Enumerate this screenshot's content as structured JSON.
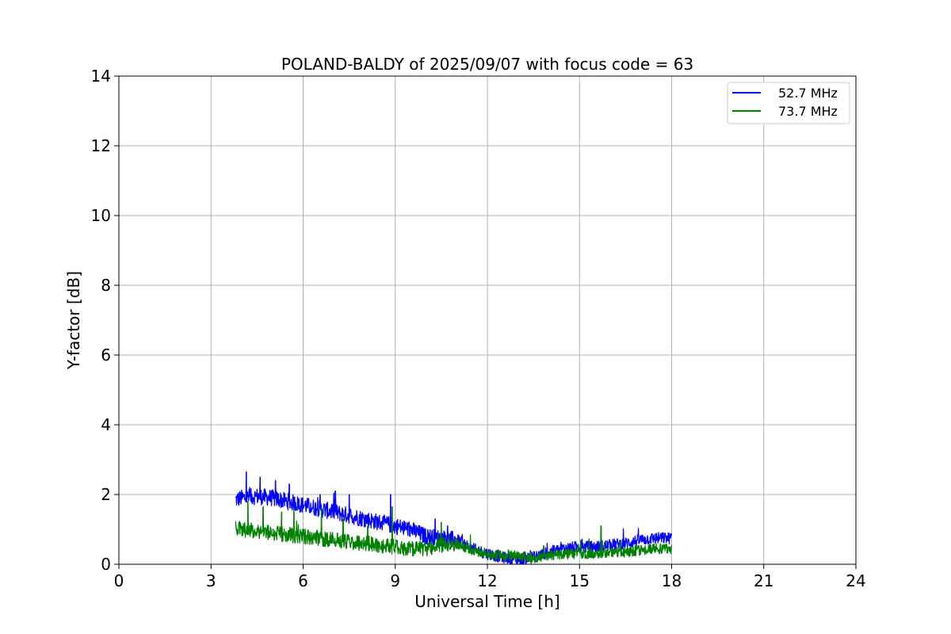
{
  "chart_data": {
    "type": "line",
    "title": "POLAND-BALDY of 2025/09/07 with focus code = 63",
    "xlabel": "Universal Time [h]",
    "ylabel": "Y-factor [dB]",
    "xlim": [
      0,
      24
    ],
    "ylim": [
      0,
      14
    ],
    "xticks": [
      "0",
      "3",
      "6",
      "9",
      "12",
      "15",
      "18",
      "21",
      "24"
    ],
    "yticks": [
      "0",
      "2",
      "4",
      "6",
      "8",
      "10",
      "12",
      "14"
    ],
    "grid": true,
    "legend_position": "upper right",
    "series": [
      {
        "name": "52.7 MHz",
        "color": "#0000ff",
        "x": [
          3.8,
          4.0,
          4.5,
          5.0,
          5.5,
          6.0,
          6.5,
          7.0,
          7.5,
          8.0,
          8.5,
          9.0,
          9.5,
          10.0,
          10.5,
          11.0,
          11.5,
          12.0,
          12.5,
          13.0,
          13.5,
          14.0,
          14.5,
          15.0,
          15.5,
          16.0,
          16.5,
          17.0,
          17.5,
          18.0
        ],
        "values": [
          1.85,
          1.9,
          1.95,
          1.9,
          1.8,
          1.7,
          1.6,
          1.5,
          1.4,
          1.3,
          1.2,
          1.1,
          1.0,
          0.8,
          0.75,
          0.7,
          0.45,
          0.3,
          0.2,
          0.15,
          0.2,
          0.35,
          0.45,
          0.5,
          0.5,
          0.55,
          0.6,
          0.7,
          0.75,
          0.75
        ],
        "spikes": [
          [
            4.15,
            2.65
          ],
          [
            4.6,
            2.5
          ],
          [
            5.1,
            2.4
          ],
          [
            5.55,
            2.3
          ],
          [
            6.55,
            2.0
          ],
          [
            7.05,
            2.1
          ],
          [
            7.5,
            2.0
          ],
          [
            8.85,
            2.0
          ],
          [
            10.3,
            1.3
          ],
          [
            10.7,
            1.1
          ]
        ]
      },
      {
        "name": "73.7 MHz",
        "color": "#008000",
        "x": [
          3.8,
          4.0,
          4.5,
          5.0,
          5.5,
          6.0,
          6.5,
          7.0,
          7.5,
          8.0,
          8.5,
          9.0,
          9.5,
          10.0,
          10.5,
          11.0,
          11.5,
          12.0,
          12.5,
          13.0,
          13.5,
          14.0,
          14.5,
          15.0,
          15.5,
          16.0,
          16.5,
          17.0,
          17.5,
          18.0
        ],
        "values": [
          1.05,
          1.0,
          0.95,
          0.9,
          0.85,
          0.8,
          0.75,
          0.7,
          0.65,
          0.6,
          0.55,
          0.5,
          0.45,
          0.45,
          0.55,
          0.6,
          0.4,
          0.3,
          0.25,
          0.25,
          0.2,
          0.25,
          0.3,
          0.3,
          0.3,
          0.35,
          0.35,
          0.4,
          0.45,
          0.45
        ],
        "spikes": [
          [
            4.2,
            1.8
          ],
          [
            4.7,
            1.65
          ],
          [
            5.3,
            1.5
          ],
          [
            5.7,
            1.6
          ],
          [
            6.6,
            1.6
          ],
          [
            7.3,
            1.3
          ],
          [
            8.1,
            1.1
          ],
          [
            8.9,
            1.65
          ],
          [
            10.5,
            1.2
          ],
          [
            15.7,
            1.1
          ]
        ]
      }
    ]
  }
}
